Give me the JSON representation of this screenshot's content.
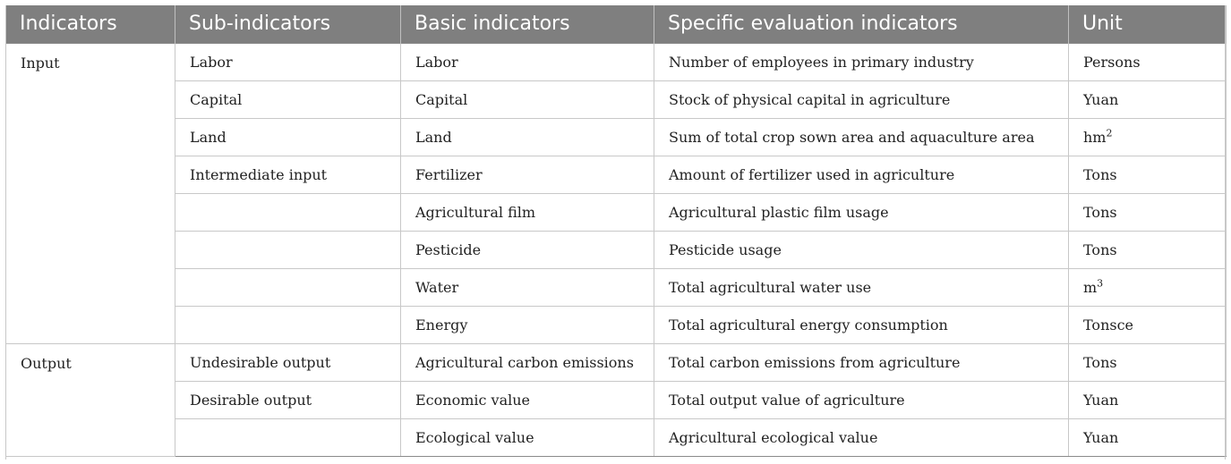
{
  "table": {
    "headers": [
      "Indicators",
      "Sub-indicators",
      "Basic indicators",
      "Specific evaluation indicators",
      "Unit"
    ],
    "groups": [
      {
        "indicator": "Input",
        "rows": [
          {
            "sub": "Labor",
            "basic": "Labor",
            "specific": "Number of employees in primary industry",
            "unit": "Persons"
          },
          {
            "sub": "Capital",
            "basic": "Capital",
            "specific": "Stock of physical capital in agriculture",
            "unit": "Yuan"
          },
          {
            "sub": "Land",
            "basic": "Land",
            "specific": "Sum of total crop sown area and aquaculture area",
            "unit": "hm",
            "unit_sup": "2"
          },
          {
            "sub": "Intermediate input",
            "basic": "Fertilizer",
            "specific": "Amount of fertilizer used in agriculture",
            "unit": "Tons"
          },
          {
            "sub": "",
            "basic": "Agricultural film",
            "specific": "Agricultural plastic film usage",
            "unit": "Tons"
          },
          {
            "sub": "",
            "basic": "Pesticide",
            "specific": "Pesticide usage",
            "unit": "Tons"
          },
          {
            "sub": "",
            "basic": "Water",
            "specific": "Total agricultural water use",
            "unit": "m",
            "unit_sup": "3"
          },
          {
            "sub": "",
            "basic": "Energy",
            "specific": "Total agricultural energy consumption",
            "unit": "Tonsce"
          }
        ]
      },
      {
        "indicator": "Output",
        "rows": [
          {
            "sub": "Undesirable output",
            "basic": "Agricultural carbon emissions",
            "specific": "Total carbon emissions from agriculture",
            "unit": "Tons"
          },
          {
            "sub": "Desirable output",
            "basic": "Economic value",
            "specific": "Total output value of agriculture",
            "unit": "Yuan"
          },
          {
            "sub": "",
            "basic": "Ecological value",
            "specific": "Agricultural ecological value",
            "unit": "Yuan"
          }
        ]
      }
    ]
  }
}
